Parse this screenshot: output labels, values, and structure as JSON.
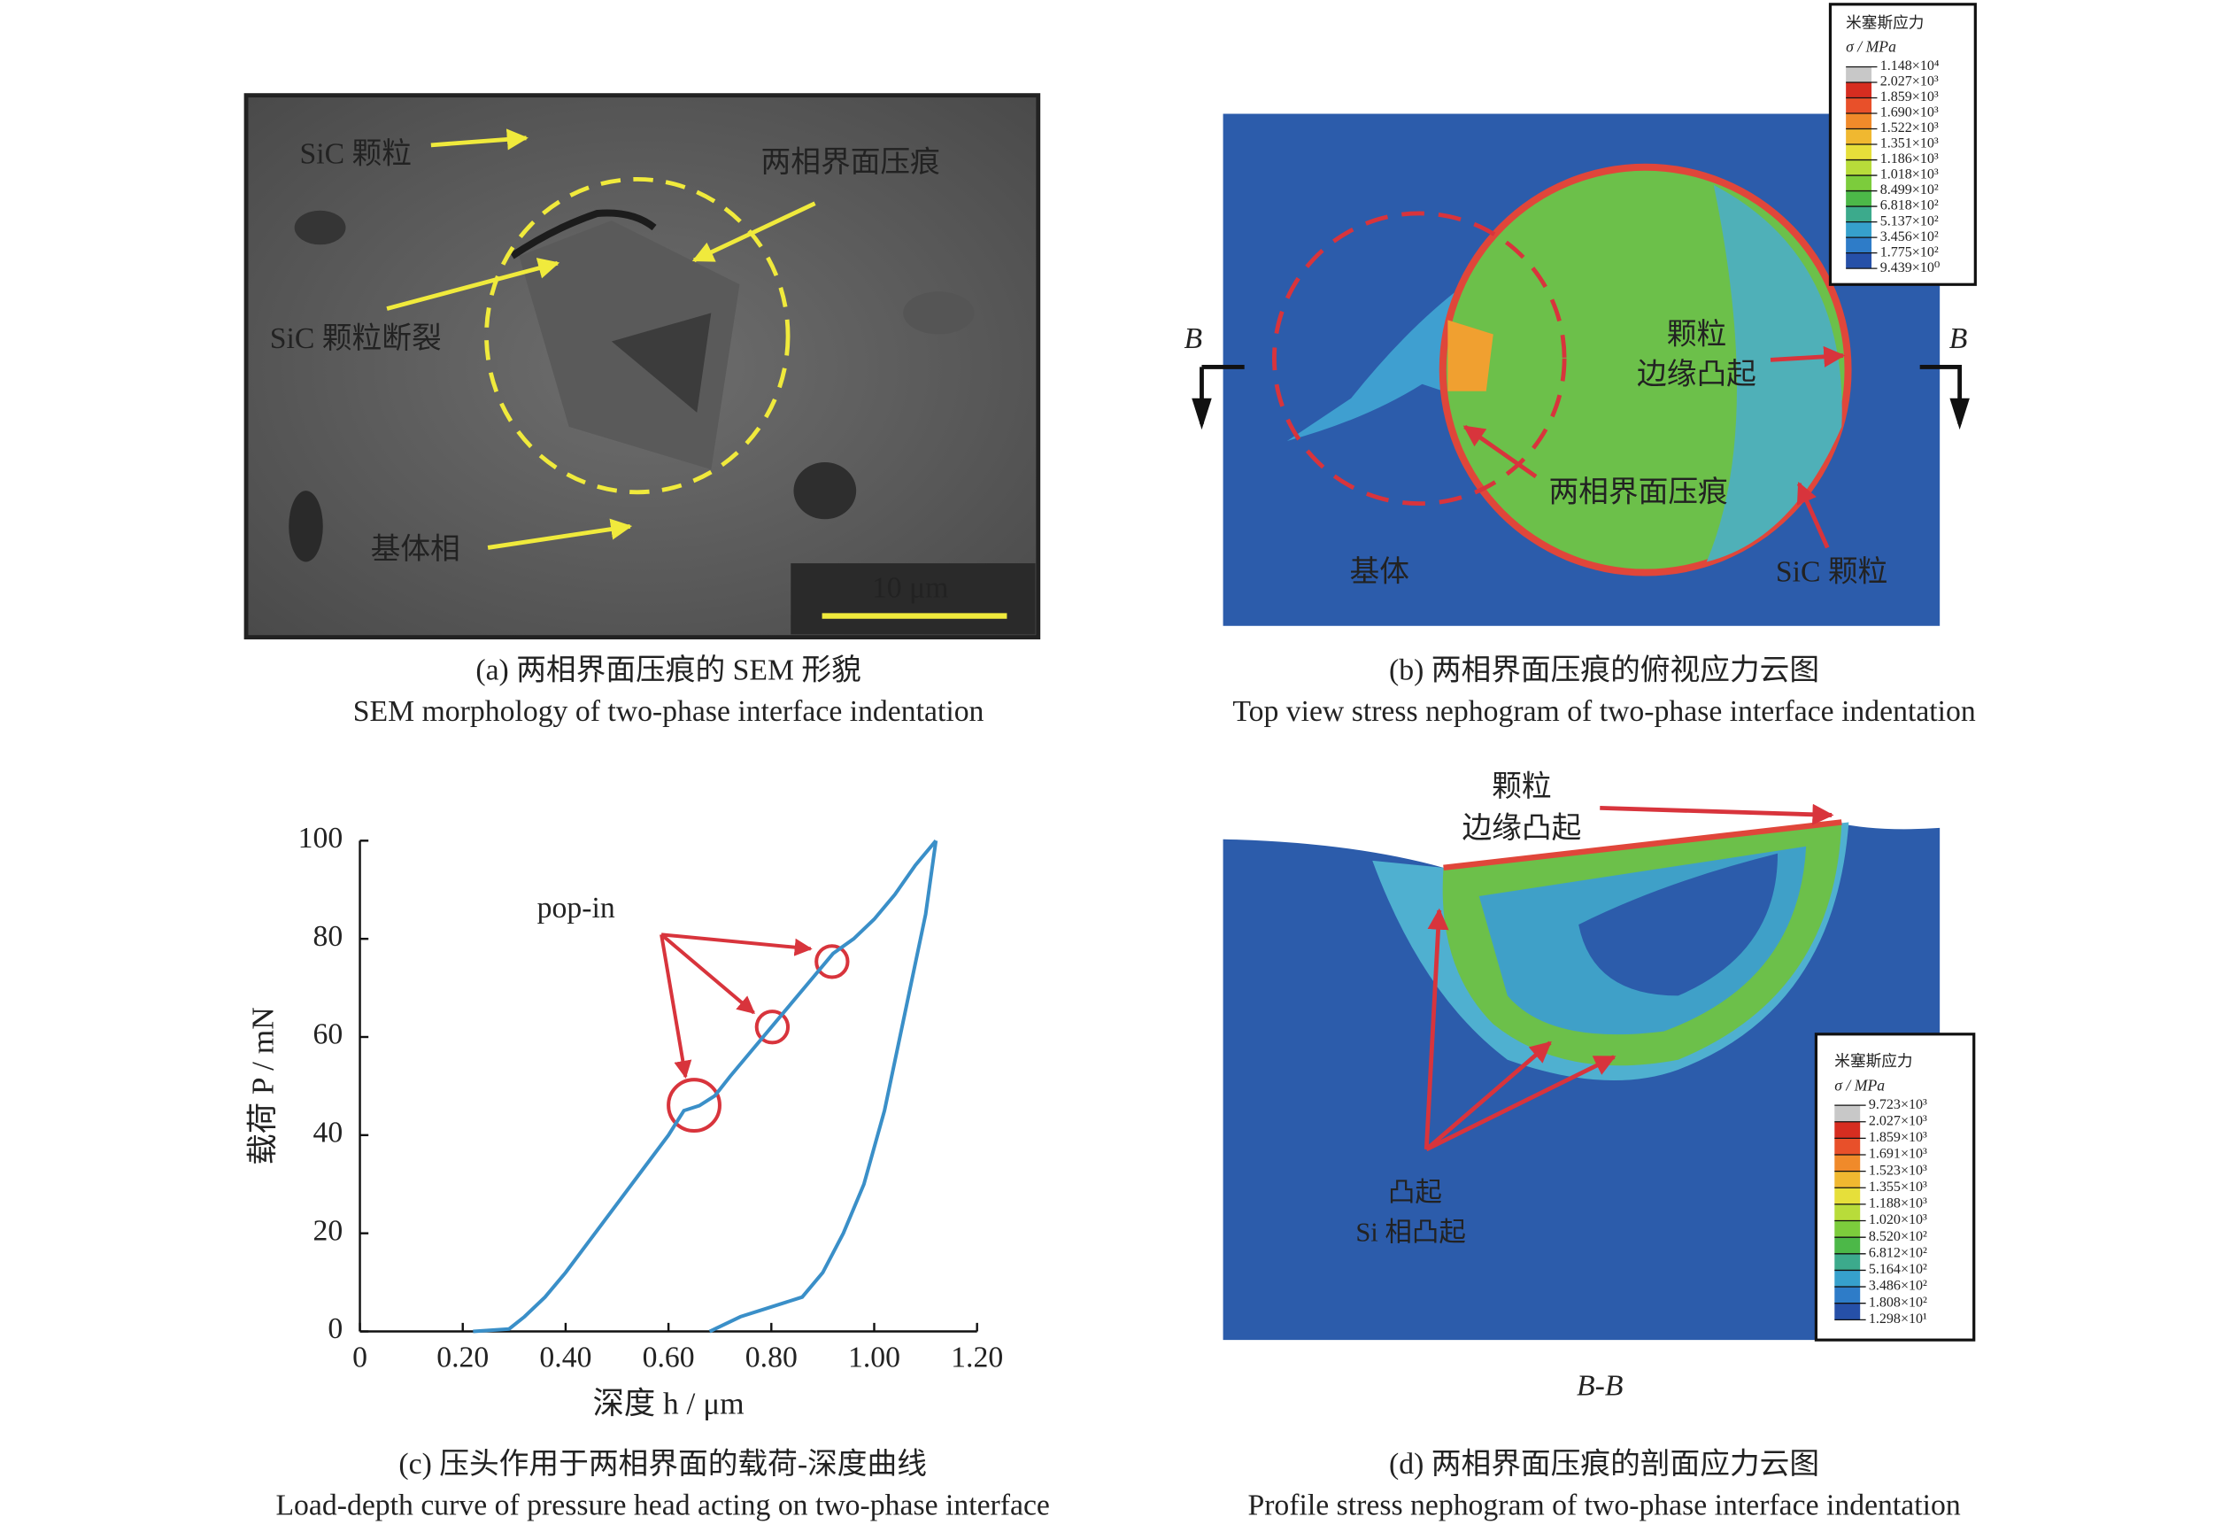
{
  "panel_a": {
    "labels": [
      "SiC 颗粒",
      "两相界面压痕",
      "SiC 颗粒断裂",
      "基体相"
    ],
    "scale_bar": "10 μm",
    "caption": [
      "(a) 两相界面压痕的 SEM 形貌",
      "SEM morphology of two-phase interface indentation"
    ]
  },
  "panel_b": {
    "legend_title": [
      "米塞斯应力",
      "σ / MPa"
    ],
    "legend": [
      "1.148×10⁴",
      "2.027×10³",
      "1.859×10³",
      "1.690×10³",
      "1.522×10³",
      "1.351×10³",
      "1.186×10³",
      "1.018×10³",
      "8.499×10²",
      "6.818×10²",
      "5.137×10²",
      "3.456×10²",
      "1.775×10²",
      "9.439×10⁰"
    ],
    "bulge": [
      "颗粒",
      "边缘凸起"
    ],
    "indent": "两相界面压痕",
    "matrix": "基体",
    "particle": "SiC 颗粒",
    "section": [
      "B",
      "B"
    ],
    "caption": [
      "(b) 两相界面压痕的俯视应力云图",
      "Top view stress nephogram of two-phase interface indentation"
    ]
  },
  "chart_data": {
    "type": "line",
    "annotation": "pop-in",
    "xlabel": "深度 h / μm",
    "ylabel": "载荷 P / mN",
    "series": [
      {
        "color": "#3a8fc8",
        "x": [
          0.22,
          0.29,
          0.32,
          0.36,
          0.4,
          0.45,
          0.5,
          0.55,
          0.6,
          0.63,
          0.66,
          0.69,
          0.72,
          0.76,
          0.8,
          0.84,
          0.88,
          0.92,
          0.96,
          1.0,
          1.04,
          1.08,
          1.12
        ],
        "values": [
          0,
          0.5,
          3,
          7,
          12,
          19,
          26,
          33,
          40,
          45,
          46,
          48,
          52,
          57,
          62,
          67,
          72,
          77,
          80,
          84,
          89,
          95,
          100
        ]
      },
      {
        "color": "#3a8fc8",
        "x": [
          1.12,
          1.1,
          1.06,
          1.02,
          0.98,
          0.94,
          0.9,
          0.86,
          0.8,
          0.74,
          0.68
        ],
        "values": [
          100,
          85,
          65,
          45,
          30,
          20,
          12,
          7,
          5,
          3,
          0
        ]
      }
    ],
    "xlim": [
      0,
      1.2
    ],
    "ylim": [
      0,
      100
    ],
    "xticks": [
      0,
      {
        "value": 0.2,
        "label": "0.20"
      },
      {
        "value": 0.4,
        "label": "0.40"
      },
      {
        "value": 0.6,
        "label": "0.60"
      },
      {
        "value": 0.8,
        "label": "0.80"
      },
      {
        "value": 1.0,
        "label": "1.00"
      },
      {
        "value": 1.2,
        "label": "1.20"
      }
    ],
    "yticks": [
      0,
      20,
      40,
      60,
      80,
      100
    ],
    "caption": [
      "(c) 压头作用于两相界面的载荷-深度曲线",
      "Load-depth curve of pressure head acting on two-phase interface"
    ]
  },
  "panel_d": {
    "legend_title": [
      "米塞斯应力",
      "σ / MPa"
    ],
    "legend": [
      "9.723×10³",
      "2.027×10³",
      "1.859×10³",
      "1.691×10³",
      "1.523×10³",
      "1.355×10³",
      "1.188×10³",
      "1.020×10³",
      "8.520×10²",
      "6.812×10²",
      "5.164×10²",
      "3.486×10²",
      "1.808×10²",
      "1.298×10¹"
    ],
    "bulge": [
      "颗粒",
      "边缘凸起"
    ],
    "matrix": [
      "凸起",
      "Si 相凸起"
    ],
    "section": "B-B",
    "caption": [
      "(d) 两相界面压痕的剖面应力云图",
      "Profile stress nephogram of two-phase interface indentation"
    ]
  }
}
